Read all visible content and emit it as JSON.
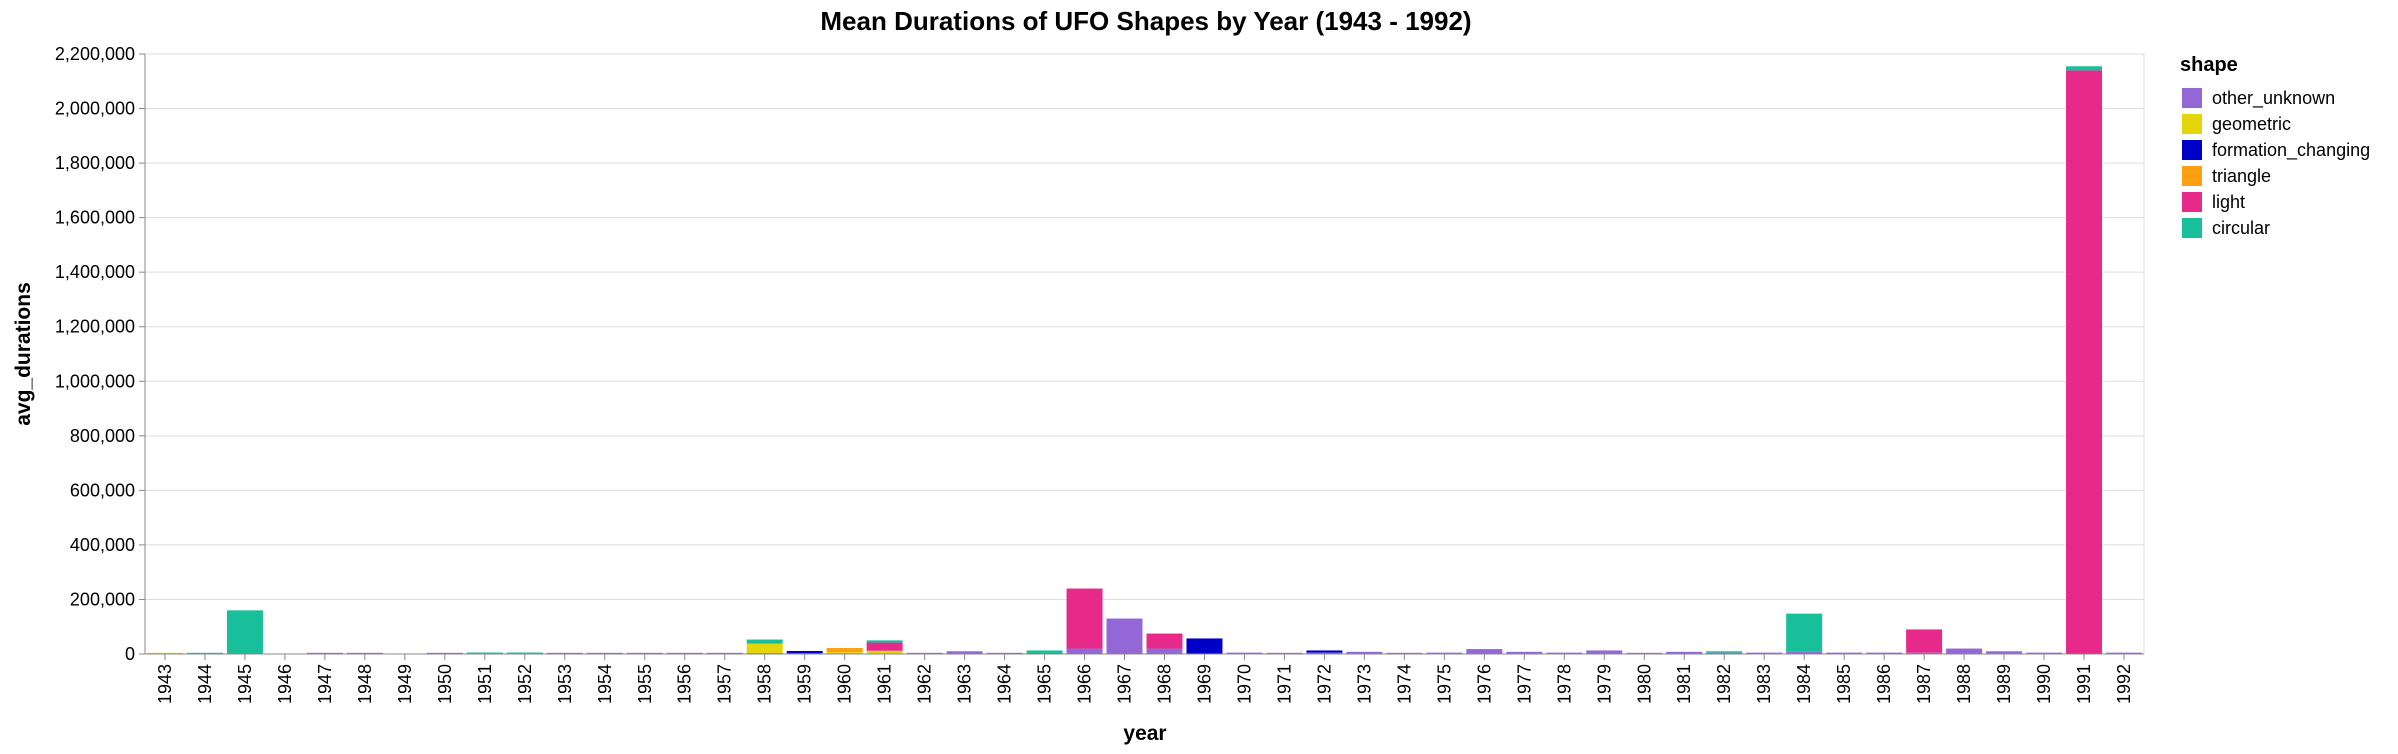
{
  "chart_data": {
    "type": "bar",
    "stacked": true,
    "title": "Mean Durations of UFO Shapes by Year (1943 - 1992)",
    "xlabel": "year",
    "ylabel": "avg_durations",
    "ylim": [
      0,
      2200000
    ],
    "yticks": [
      0,
      200000,
      400000,
      600000,
      800000,
      1000000,
      1200000,
      1400000,
      1600000,
      1800000,
      2000000,
      2200000
    ],
    "grid": true,
    "legend": {
      "title": "shape",
      "placement": "right"
    },
    "categories": [
      "1943",
      "1944",
      "1945",
      "1946",
      "1947",
      "1948",
      "1949",
      "1950",
      "1951",
      "1952",
      "1953",
      "1954",
      "1955",
      "1956",
      "1957",
      "1958",
      "1959",
      "1960",
      "1961",
      "1962",
      "1963",
      "1964",
      "1965",
      "1966",
      "1967",
      "1968",
      "1969",
      "1970",
      "1971",
      "1972",
      "1973",
      "1974",
      "1975",
      "1976",
      "1977",
      "1978",
      "1979",
      "1980",
      "1981",
      "1982",
      "1983",
      "1984",
      "1985",
      "1986",
      "1987",
      "1988",
      "1989",
      "1990",
      "1991",
      "1992"
    ],
    "series": [
      {
        "name": "other_unknown",
        "color": "#9467d6",
        "values": [
          0,
          0,
          0,
          0,
          2000,
          1000,
          0,
          1000,
          1000,
          1000,
          1000,
          1000,
          1000,
          2000,
          3000,
          3000,
          3000,
          2000,
          2000,
          3000,
          10000,
          3000,
          3000,
          20000,
          130000,
          20000,
          2000,
          5000,
          3000,
          5000,
          8000,
          3000,
          5000,
          18000,
          8000,
          5000,
          13000,
          3000,
          8000,
          5000,
          5000,
          8000,
          5000,
          5000,
          5000,
          20000,
          10000,
          5000,
          0,
          5000
        ]
      },
      {
        "name": "geometric",
        "color": "#e4d60b",
        "values": [
          2000,
          0,
          0,
          0,
          0,
          0,
          0,
          0,
          0,
          0,
          0,
          0,
          0,
          0,
          0,
          35000,
          0,
          5000,
          10000,
          0,
          0,
          0,
          0,
          0,
          0,
          0,
          0,
          0,
          0,
          0,
          0,
          0,
          0,
          0,
          0,
          0,
          0,
          0,
          0,
          0,
          0,
          0,
          0,
          0,
          0,
          0,
          0,
          0,
          0,
          0
        ]
      },
      {
        "name": "formation_changing",
        "color": "#0000c8",
        "values": [
          0,
          0,
          0,
          0,
          0,
          0,
          0,
          0,
          0,
          0,
          0,
          0,
          0,
          0,
          0,
          0,
          8000,
          0,
          0,
          0,
          0,
          0,
          0,
          0,
          0,
          0,
          55000,
          0,
          0,
          8000,
          0,
          0,
          0,
          0,
          0,
          0,
          0,
          0,
          0,
          0,
          0,
          0,
          0,
          0,
          0,
          0,
          0,
          0,
          0,
          0
        ]
      },
      {
        "name": "triangle",
        "color": "#ff9f12",
        "values": [
          0,
          0,
          0,
          0,
          0,
          0,
          0,
          0,
          0,
          0,
          0,
          0,
          0,
          0,
          0,
          0,
          0,
          15000,
          0,
          0,
          0,
          0,
          0,
          0,
          0,
          0,
          0,
          0,
          0,
          0,
          0,
          0,
          0,
          0,
          0,
          0,
          0,
          0,
          0,
          0,
          0,
          0,
          0,
          0,
          0,
          0,
          0,
          0,
          0,
          0
        ]
      },
      {
        "name": "light",
        "color": "#e7298a",
        "values": [
          0,
          0,
          0,
          0,
          0,
          0,
          0,
          0,
          0,
          0,
          0,
          0,
          0,
          0,
          0,
          0,
          0,
          0,
          30000,
          0,
          0,
          0,
          0,
          220000,
          0,
          55000,
          0,
          0,
          0,
          0,
          0,
          0,
          0,
          0,
          0,
          0,
          0,
          0,
          0,
          0,
          0,
          0,
          0,
          0,
          85000,
          0,
          0,
          0,
          2140000,
          0
        ]
      },
      {
        "name": "circular",
        "color": "#17bf9b",
        "values": [
          0,
          2000,
          160000,
          0,
          0,
          0,
          0,
          0,
          1000,
          3000,
          0,
          0,
          0,
          0,
          0,
          15000,
          0,
          0,
          8000,
          0,
          0,
          0,
          10000,
          0,
          0,
          0,
          0,
          0,
          0,
          0,
          0,
          0,
          0,
          0,
          0,
          0,
          0,
          0,
          0,
          5000,
          0,
          140000,
          0,
          0,
          0,
          0,
          0,
          0,
          15000,
          0
        ]
      }
    ]
  }
}
